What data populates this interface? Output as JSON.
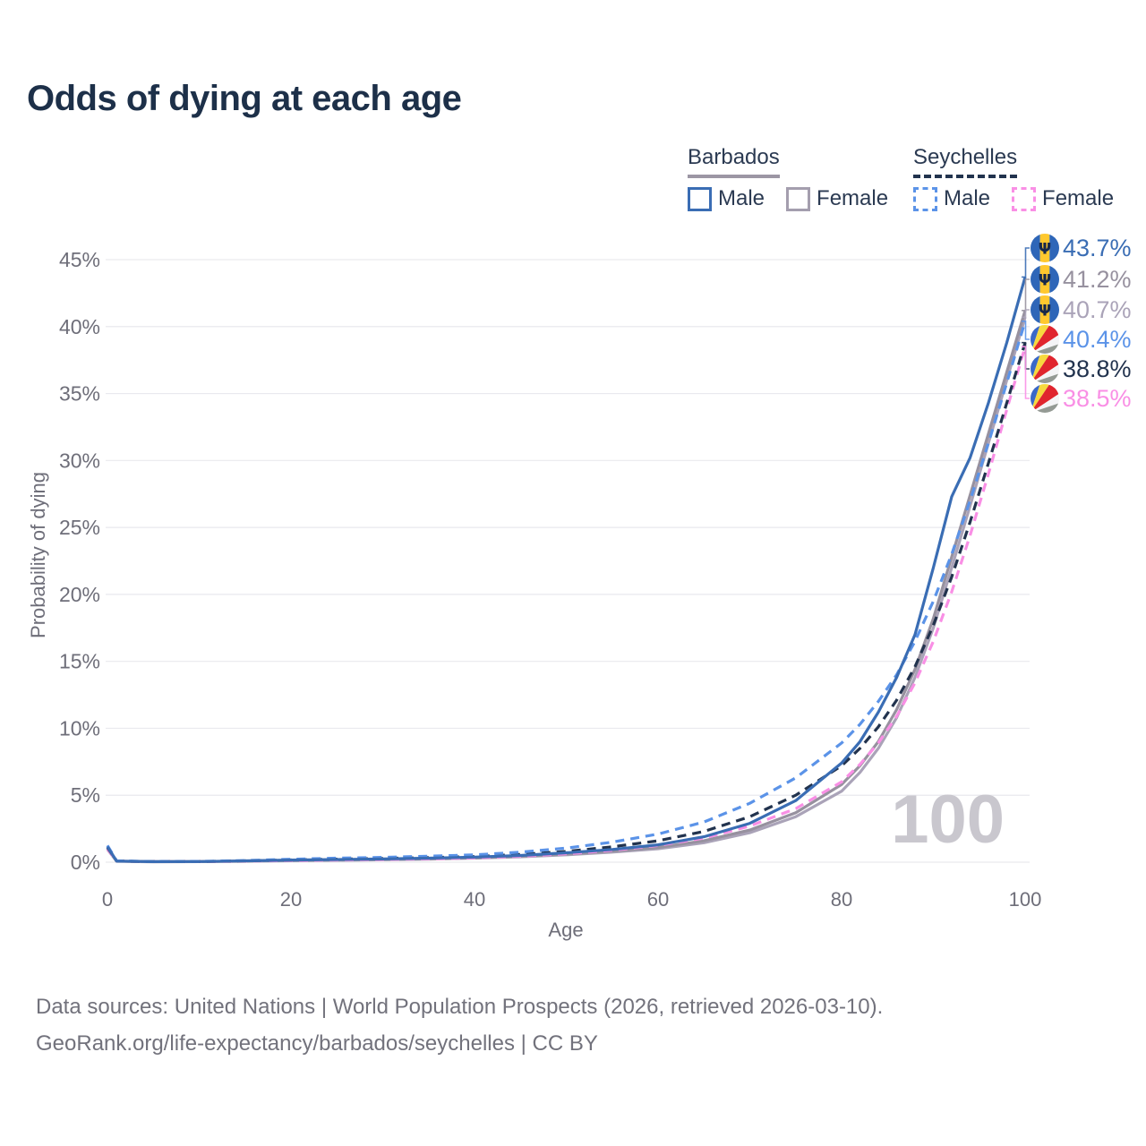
{
  "title": "Odds of dying at each age",
  "legend": {
    "groups": [
      {
        "label": "Barbados",
        "line_style": "solid",
        "underline_color": "#9c96a4",
        "items": [
          {
            "label": "Male",
            "color": "#3a6db4",
            "dashed": false
          },
          {
            "label": "Female",
            "color": "#a49eae",
            "dashed": false
          }
        ]
      },
      {
        "label": "Seychelles",
        "line_style": "dashed",
        "underline_color": "#22334e",
        "items": [
          {
            "label": "Male",
            "color": "#5b93e8",
            "dashed": true
          },
          {
            "label": "Female",
            "color": "#f98fe5",
            "dashed": true
          }
        ]
      }
    ]
  },
  "footer": {
    "line1": "Data sources: United Nations | World Population Prospects (2026, retrieved 2026-03-10).",
    "line2": "GeoRank.org/life-expectancy/barbados/seychelles | CC BY"
  },
  "chart_data": {
    "type": "line",
    "title": "Odds of dying at each age",
    "xlabel": "Age",
    "ylabel": "Probability of dying",
    "xlim": [
      0,
      100
    ],
    "ylim": [
      0,
      45
    ],
    "x_ticks": [
      0,
      20,
      40,
      60,
      80,
      100
    ],
    "y_tick_step": 5,
    "y_tick_suffix": "%",
    "grid": "horizontal",
    "legend_position": "top-right",
    "hover_age": "100",
    "ages": [
      0,
      1,
      5,
      10,
      15,
      20,
      25,
      30,
      35,
      40,
      45,
      50,
      55,
      60,
      65,
      70,
      75,
      80,
      82,
      84,
      86,
      88,
      90,
      92,
      94,
      96,
      98,
      100
    ],
    "series": [
      {
        "name": "Barbados Male",
        "country": "Barbados",
        "sex": "male",
        "color": "#3a6db4",
        "label_color": "#3a6db4",
        "dash": false,
        "flag": "barbados",
        "end_value": 43.7,
        "end_label": "43.7%",
        "values": [
          1.15,
          0.08,
          0.04,
          0.05,
          0.1,
          0.16,
          0.2,
          0.24,
          0.3,
          0.38,
          0.5,
          0.7,
          0.95,
          1.3,
          1.9,
          2.9,
          4.6,
          7.4,
          9.0,
          11.2,
          13.8,
          17.0,
          22.0,
          27.3,
          30.2,
          34.3,
          38.8,
          43.7
        ]
      },
      {
        "name": "Barbados Total",
        "country": "Barbados",
        "sex": "total",
        "color": "#97919f",
        "label_color": "#97919f",
        "dash": false,
        "flag": "barbados",
        "end_value": 41.2,
        "end_label": "41.2%",
        "values": [
          1.05,
          0.08,
          0.04,
          0.04,
          0.09,
          0.14,
          0.17,
          0.21,
          0.26,
          0.33,
          0.44,
          0.6,
          0.82,
          1.1,
          1.6,
          2.4,
          3.7,
          5.8,
          7.2,
          9.0,
          11.4,
          14.4,
          18.2,
          22.8,
          27.4,
          32.0,
          36.6,
          41.2
        ]
      },
      {
        "name": "Barbados Female",
        "country": "Barbados",
        "sex": "female",
        "color": "#aaa3b8",
        "label_color": "#aaa3b8",
        "dash": false,
        "flag": "barbados",
        "end_value": 40.7,
        "end_label": "40.7%",
        "values": [
          0.95,
          0.07,
          0.03,
          0.04,
          0.07,
          0.11,
          0.14,
          0.18,
          0.23,
          0.3,
          0.4,
          0.55,
          0.75,
          1.0,
          1.45,
          2.2,
          3.4,
          5.3,
          6.7,
          8.5,
          10.8,
          13.8,
          17.5,
          22.0,
          26.6,
          31.3,
          36.0,
          40.7
        ]
      },
      {
        "name": "Seychelles Male",
        "country": "Seychelles",
        "sex": "male",
        "color": "#5b93e8",
        "label_color": "#5b93e8",
        "dash": true,
        "flag": "seychelles",
        "end_value": 40.4,
        "end_label": "40.4%",
        "values": [
          1.25,
          0.1,
          0.05,
          0.06,
          0.12,
          0.22,
          0.3,
          0.36,
          0.45,
          0.55,
          0.75,
          1.05,
          1.5,
          2.1,
          3.0,
          4.4,
          6.3,
          8.9,
          10.3,
          12.0,
          14.0,
          16.5,
          19.5,
          23.0,
          27.0,
          31.3,
          35.8,
          40.4
        ]
      },
      {
        "name": "Seychelles Total",
        "country": "Seychelles",
        "sex": "total",
        "color": "#22334e",
        "label_color": "#22334e",
        "dash": true,
        "flag": "seychelles",
        "end_value": 38.8,
        "end_label": "38.8%",
        "values": [
          1.1,
          0.09,
          0.04,
          0.05,
          0.1,
          0.17,
          0.23,
          0.28,
          0.34,
          0.42,
          0.58,
          0.8,
          1.15,
          1.6,
          2.3,
          3.4,
          5.0,
          7.2,
          8.5,
          10.1,
          12.1,
          14.6,
          17.7,
          21.3,
          25.4,
          29.8,
          34.3,
          38.8
        ]
      },
      {
        "name": "Seychelles Female",
        "country": "Seychelles",
        "sex": "female",
        "color": "#f98fe5",
        "label_color": "#f98fe5",
        "dash": true,
        "flag": "seychelles",
        "end_value": 38.5,
        "end_label": "38.5%",
        "values": [
          1.0,
          0.08,
          0.04,
          0.04,
          0.08,
          0.12,
          0.16,
          0.2,
          0.25,
          0.32,
          0.44,
          0.62,
          0.88,
          1.25,
          1.8,
          2.7,
          4.0,
          6.0,
          7.3,
          8.9,
          10.9,
          13.4,
          16.5,
          20.2,
          24.4,
          29.0,
          33.8,
          38.5
        ]
      }
    ]
  }
}
